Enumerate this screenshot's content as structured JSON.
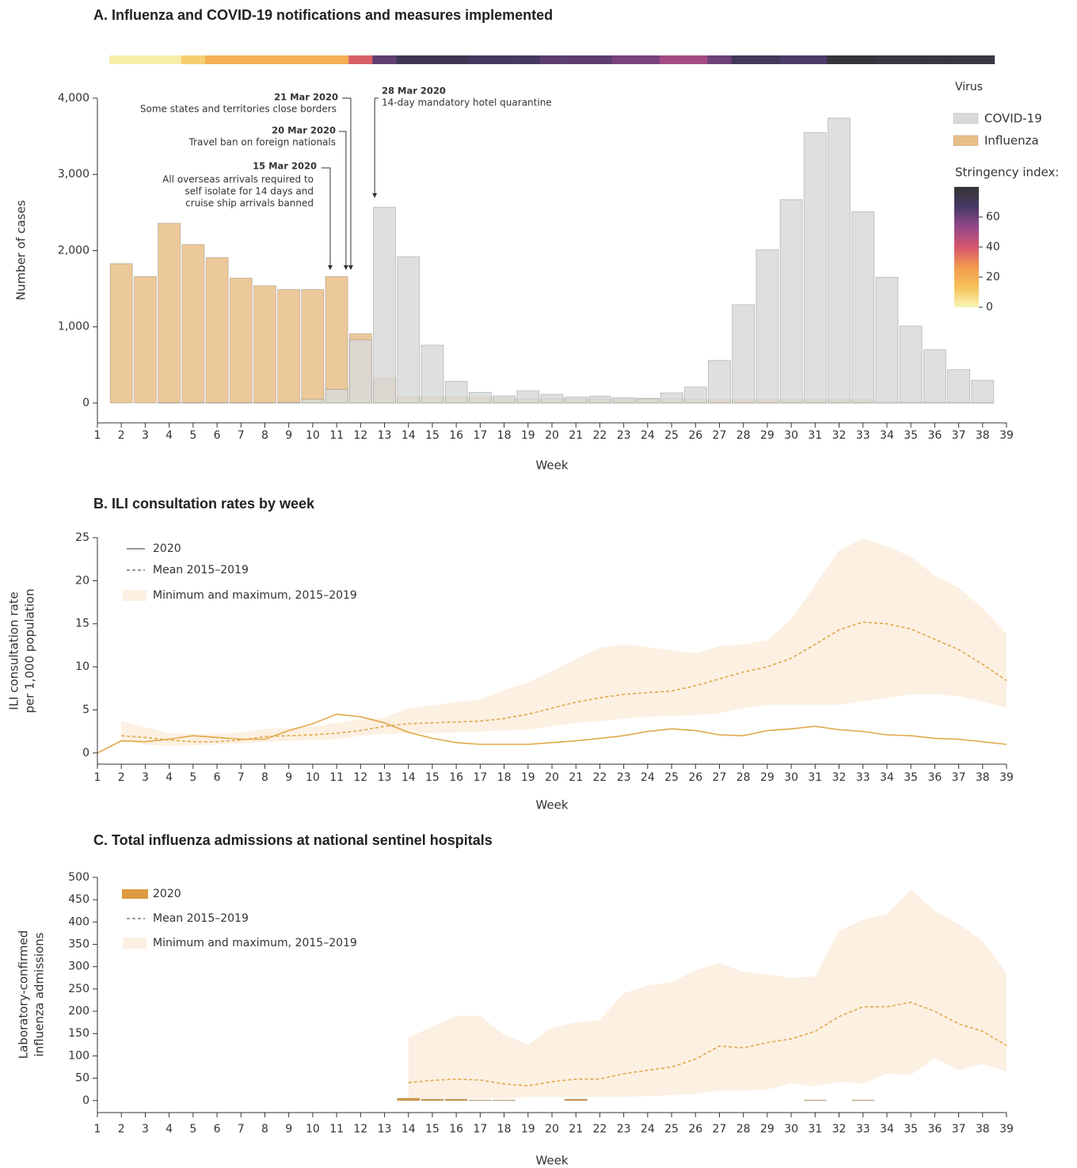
{
  "chart_data": [
    {
      "type": "bar",
      "title": "A. Influenza and COVID-19 notifications and measures implemented",
      "x_label": "Week",
      "y_label": "Number of cases",
      "x": [
        2,
        3,
        4,
        5,
        6,
        7,
        8,
        9,
        10,
        11,
        12,
        13,
        14,
        15,
        16,
        17,
        18,
        19,
        20,
        21,
        22,
        23,
        24,
        25,
        26,
        27,
        28,
        29,
        30,
        31,
        32,
        33,
        34,
        35,
        36,
        37,
        38
      ],
      "series": [
        {
          "name": "COVID-19",
          "color": "#d9d9d9",
          "values": [
            0,
            0,
            5,
            5,
            5,
            5,
            5,
            10,
            50,
            180,
            830,
            2570,
            1920,
            760,
            285,
            140,
            95,
            160,
            115,
            80,
            90,
            70,
            60,
            135,
            210,
            560,
            1290,
            2010,
            2670,
            3550,
            3740,
            2510,
            1650,
            1010,
            700,
            440,
            300
          ]
        },
        {
          "name": "Influenza",
          "color": "#e9bf88",
          "values": [
            1830,
            1660,
            2360,
            2080,
            1910,
            1640,
            1540,
            1490,
            1490,
            1660,
            910,
            330,
            80,
            80,
            80,
            80,
            70,
            60,
            60,
            60,
            60,
            60,
            60,
            60,
            55,
            50,
            50,
            50,
            45,
            45,
            45,
            45,
            20,
            15,
            15,
            15,
            5
          ]
        }
      ],
      "xlim": [
        1,
        39
      ],
      "xticks": [
        1,
        2,
        3,
        4,
        5,
        6,
        7,
        8,
        9,
        10,
        11,
        12,
        13,
        14,
        15,
        16,
        17,
        18,
        19,
        20,
        21,
        22,
        23,
        24,
        25,
        26,
        27,
        28,
        29,
        30,
        31,
        32,
        33,
        34,
        35,
        36,
        37,
        38,
        39
      ],
      "ylim": [
        -260,
        4000
      ],
      "yticks": [
        0,
        {
          "value": 1000,
          "label": "1,000"
        },
        {
          "value": 2000,
          "label": "2,000"
        },
        {
          "value": 3000,
          "label": "3,000"
        },
        {
          "value": 4000,
          "label": "4,000"
        }
      ],
      "legend_title": "Virus",
      "stringency": {
        "title": "Stringency index:",
        "values": [
          2,
          2,
          2,
          10,
          19,
          19,
          19,
          19,
          19,
          19,
          38,
          62,
          72,
          72,
          72,
          68,
          68,
          68,
          63,
          63,
          63,
          58,
          58,
          50,
          50,
          60,
          70,
          70,
          66,
          66,
          78,
          78,
          76,
          76,
          76,
          76,
          76
        ],
        "lim": [
          0,
          80
        ],
        "ticks": [
          0,
          20,
          40,
          60
        ],
        "colors": [
          "#f8f6b7",
          "#f7c15a",
          "#f19a4e",
          "#d5566c",
          "#94478a",
          "#473a66",
          "#333333"
        ]
      },
      "annotations": [
        {
          "date": "15 Mar 2020",
          "lines": [
            "All overseas arrivals required to",
            "self isolate for 14 days and",
            "cruise ship arrivals banned"
          ],
          "x": 10.73
        },
        {
          "date": "20 Mar 2020",
          "lines": [
            "Travel ban on foreign nationals"
          ],
          "x": 11.39
        },
        {
          "date": "21 Mar 2020",
          "lines": [
            "Some states and territories close borders"
          ],
          "x": 11.59
        },
        {
          "date": "28 Mar 2020",
          "lines": [
            "14-day mandatory hotel quarantine"
          ],
          "x": 12.59
        }
      ]
    },
    {
      "type": "line",
      "title": "B. ILI consultation rates by week",
      "x_label": "Week",
      "y_label": [
        "ILI consultation rate",
        "per 1,000 population"
      ],
      "x": [
        1,
        2,
        3,
        4,
        5,
        6,
        7,
        8,
        9,
        10,
        11,
        12,
        13,
        14,
        15,
        16,
        17,
        18,
        19,
        20,
        21,
        22,
        23,
        24,
        25,
        26,
        27,
        28,
        29,
        30,
        31,
        32,
        33,
        34,
        35,
        36,
        37,
        38,
        39
      ],
      "series": [
        {
          "name": "2020",
          "color": "#e0a84a",
          "values": [
            0,
            1.4,
            1.3,
            1.6,
            2.0,
            1.8,
            1.6,
            1.6,
            2.6,
            3.4,
            4.5,
            4.2,
            3.5,
            2.4,
            1.7,
            1.2,
            1.0,
            1.0,
            1.0,
            1.2,
            1.4,
            1.7,
            2.0,
            2.5,
            2.8,
            2.6,
            2.1,
            2.0,
            2.6,
            2.8,
            3.1,
            2.7,
            2.5,
            2.1,
            2.0,
            1.7,
            1.6,
            1.3,
            1.0
          ]
        },
        {
          "name": "Mean 2015–2019",
          "color": "#e0a84a",
          "dashed": true,
          "values": [
            null,
            2.0,
            1.8,
            1.5,
            1.3,
            1.3,
            1.5,
            1.9,
            2.0,
            2.1,
            2.3,
            2.6,
            3.1,
            3.4,
            3.5,
            3.6,
            3.7,
            4.0,
            4.5,
            5.2,
            5.9,
            6.4,
            6.8,
            7.0,
            7.2,
            7.8,
            8.6,
            9.4,
            10.0,
            11.0,
            12.6,
            14.3,
            15.2,
            15.0,
            14.4,
            13.2,
            12.0,
            10.3,
            8.4
          ]
        }
      ],
      "band": {
        "name": "Minimum and maximum, 2015–2019",
        "color": "#fcf0e2",
        "low": [
          null,
          1.5,
          1.0,
          0.8,
          0.9,
          1.0,
          1.1,
          1.3,
          1.4,
          1.5,
          1.6,
          2.0,
          2.2,
          2.3,
          2.3,
          2.4,
          2.5,
          2.6,
          2.7,
          3.1,
          3.5,
          3.7,
          4.0,
          4.2,
          4.3,
          4.4,
          4.6,
          5.2,
          5.6,
          5.6,
          5.6,
          5.6,
          6.0,
          6.4,
          6.8,
          6.8,
          6.6,
          6.0,
          5.2
        ],
        "high": [
          null,
          3.7,
          3.0,
          2.3,
          2.2,
          2.2,
          2.4,
          2.8,
          2.9,
          3.1,
          3.5,
          3.9,
          4.1,
          5.2,
          5.5,
          5.9,
          6.2,
          7.3,
          8.2,
          9.5,
          10.9,
          12.2,
          12.6,
          12.3,
          11.9,
          11.6,
          12.4,
          12.6,
          13.1,
          15.5,
          19.5,
          23.5,
          24.9,
          24.0,
          22.8,
          20.6,
          19.2,
          16.8,
          13.8
        ]
      },
      "xlim": [
        1,
        39
      ],
      "xticks": [
        1,
        2,
        3,
        4,
        5,
        6,
        7,
        8,
        9,
        10,
        11,
        12,
        13,
        14,
        15,
        16,
        17,
        18,
        19,
        20,
        21,
        22,
        23,
        24,
        25,
        26,
        27,
        28,
        29,
        30,
        31,
        32,
        33,
        34,
        35,
        36,
        37,
        38,
        39
      ],
      "ylim": [
        -1.3,
        25
      ],
      "yticks": [
        0,
        5,
        10,
        15,
        20,
        25
      ]
    },
    {
      "type": "combo",
      "title": "C. Total influenza admissions at national sentinel hospitals",
      "x_label": "Week",
      "y_label": [
        "Laboratory-confirmed",
        "influenza admissions"
      ],
      "x": [
        1,
        2,
        3,
        4,
        5,
        6,
        7,
        8,
        9,
        10,
        11,
        12,
        13,
        14,
        15,
        16,
        17,
        18,
        19,
        20,
        21,
        22,
        23,
        24,
        25,
        26,
        27,
        28,
        29,
        30,
        31,
        32,
        33,
        34,
        35,
        36,
        37,
        38,
        39
      ],
      "series": [
        {
          "name": "2020",
          "kind": "bar",
          "color": "#dd9a3e",
          "values": [
            0,
            0,
            0,
            0,
            0,
            0,
            0,
            0,
            0,
            0,
            0,
            0,
            0,
            5,
            3,
            3,
            1,
            1,
            0,
            0,
            3,
            0,
            0,
            0,
            0,
            0,
            0,
            0,
            0,
            0,
            1,
            0,
            1,
            0,
            0,
            0,
            0,
            0,
            0
          ]
        },
        {
          "name": "Mean 2015–2019",
          "kind": "line",
          "color": "#e0a84a",
          "dashed": true,
          "values": [
            null,
            null,
            null,
            null,
            null,
            null,
            null,
            null,
            null,
            null,
            null,
            null,
            null,
            40,
            45,
            48,
            46,
            37,
            33,
            42,
            48,
            48,
            60,
            68,
            75,
            93,
            122,
            118,
            130,
            138,
            155,
            188,
            210,
            210,
            220,
            200,
            172,
            155,
            123
          ]
        }
      ],
      "band": {
        "name": "Minimum and maximum, 2015–2019",
        "color": "#fcf0e2",
        "low": [
          null,
          null,
          null,
          null,
          null,
          null,
          null,
          null,
          null,
          null,
          null,
          null,
          null,
          5,
          5,
          5,
          5,
          5,
          8,
          8,
          8,
          8,
          8,
          10,
          12,
          15,
          22,
          22,
          25,
          38,
          32,
          42,
          38,
          60,
          58,
          95,
          68,
          82,
          65
        ],
        "high": [
          null,
          null,
          null,
          null,
          null,
          null,
          null,
          null,
          null,
          null,
          null,
          null,
          null,
          142,
          165,
          190,
          190,
          147,
          125,
          163,
          175,
          180,
          240,
          258,
          265,
          292,
          308,
          288,
          283,
          275,
          278,
          380,
          405,
          418,
          472,
          425,
          395,
          358,
          285
        ]
      },
      "xlim": [
        1,
        39
      ],
      "xticks": [
        1,
        2,
        3,
        4,
        5,
        6,
        7,
        8,
        9,
        10,
        11,
        12,
        13,
        14,
        15,
        16,
        17,
        18,
        19,
        20,
        21,
        22,
        23,
        24,
        25,
        26,
        27,
        28,
        29,
        30,
        31,
        32,
        33,
        34,
        35,
        36,
        37,
        38,
        39
      ],
      "ylim": [
        -27,
        500
      ],
      "yticks": [
        0,
        50,
        100,
        150,
        200,
        250,
        300,
        350,
        400,
        450,
        500
      ]
    }
  ]
}
